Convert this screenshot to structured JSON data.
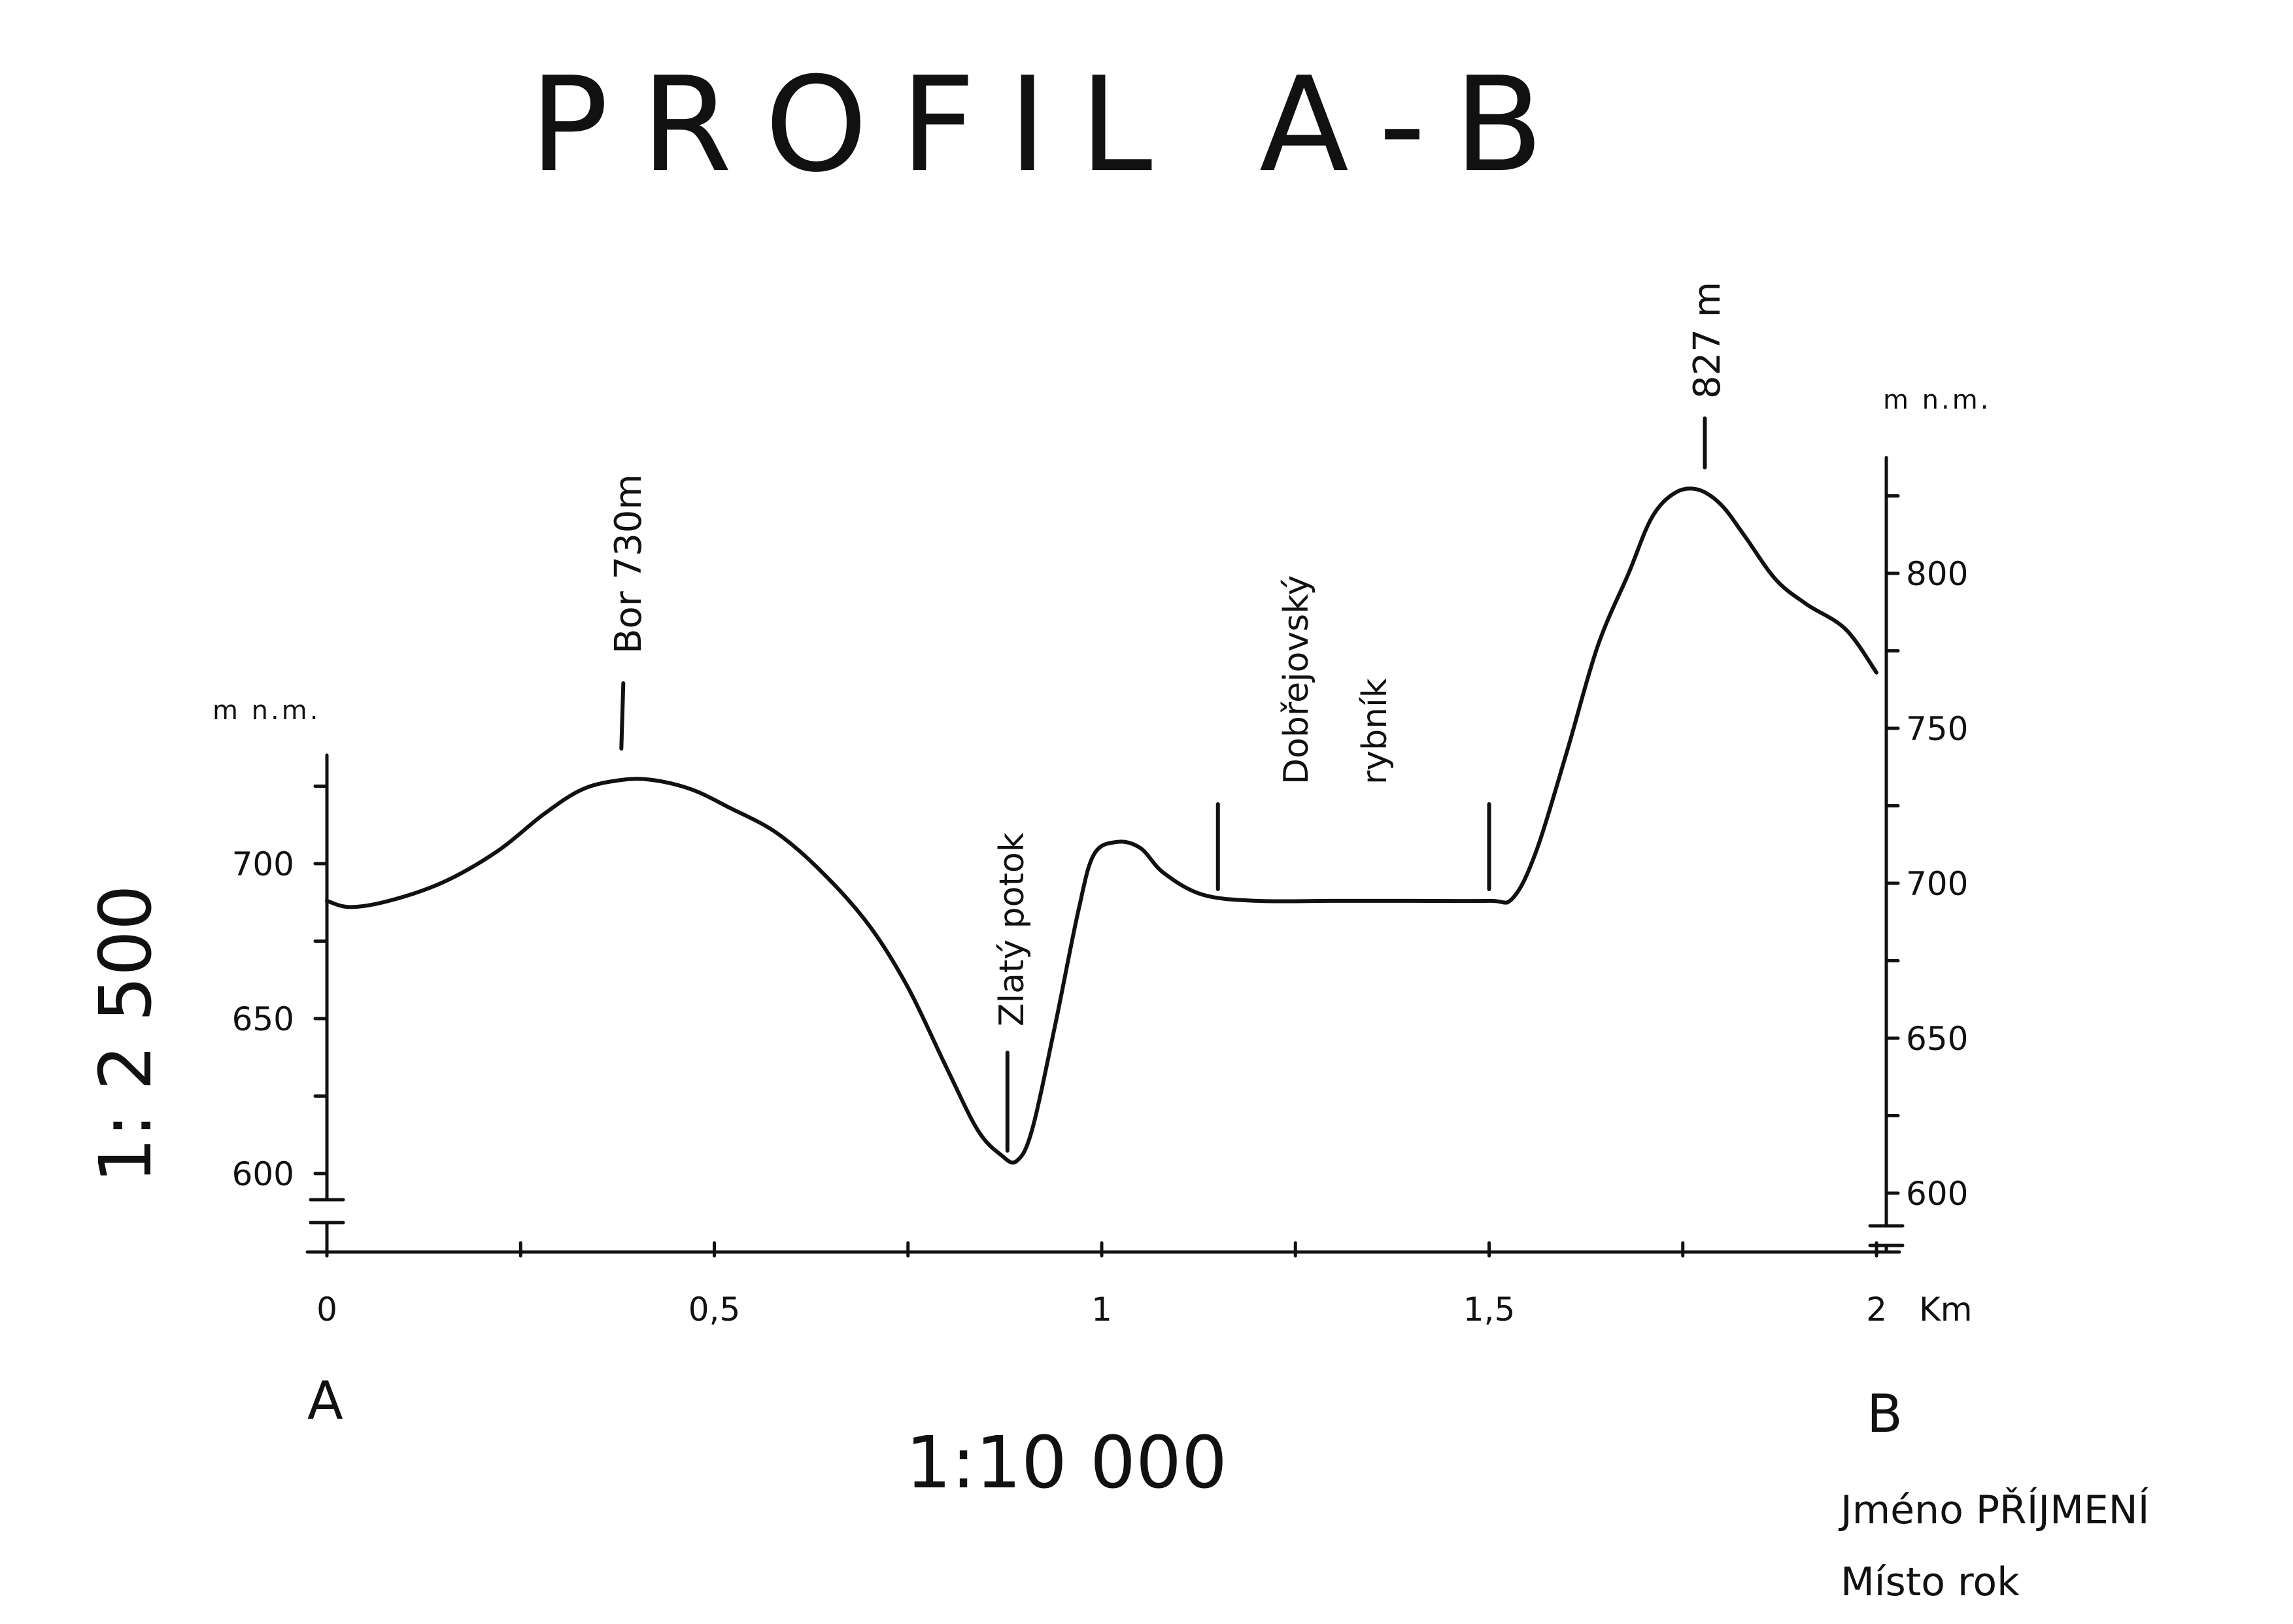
{
  "chart_data": {
    "type": "line",
    "title": "PROFIL A-B",
    "x_unit": "Km",
    "y_unit_left": "m n.m.",
    "y_unit_right": "m n.m.",
    "x_ticks": [
      0,
      0.25,
      0.5,
      0.75,
      1,
      1.25,
      1.5,
      1.75,
      2
    ],
    "x_tick_labels": [
      "0",
      "",
      "0,5",
      "",
      "1",
      "",
      "1,5",
      "",
      "2"
    ],
    "xlim": [
      0,
      2
    ],
    "ylim_left": [
      600,
      730
    ],
    "ylim_right": [
      600,
      830
    ],
    "y_ticks_left": [
      600,
      625,
      650,
      675,
      700,
      725
    ],
    "y_tick_labels_left": [
      "600",
      "",
      "650",
      "",
      "700",
      ""
    ],
    "y_ticks_right": [
      600,
      625,
      650,
      675,
      700,
      725,
      750,
      775,
      800,
      825
    ],
    "y_tick_labels_right": [
      "600",
      "",
      "650",
      "",
      "700",
      "",
      "750",
      "",
      "800",
      ""
    ],
    "axis_break": true,
    "grid": false,
    "start_label": "A",
    "end_label": "B",
    "horizontal_scale": "1:10 000",
    "vertical_scale": "1: 2 500",
    "series": [
      {
        "values": [
          {
            "x": 0.0,
            "y": 688
          },
          {
            "x": 0.03,
            "y": 686
          },
          {
            "x": 0.08,
            "y": 688
          },
          {
            "x": 0.15,
            "y": 694
          },
          {
            "x": 0.22,
            "y": 704
          },
          {
            "x": 0.28,
            "y": 716
          },
          {
            "x": 0.33,
            "y": 724
          },
          {
            "x": 0.38,
            "y": 727
          },
          {
            "x": 0.42,
            "y": 727
          },
          {
            "x": 0.47,
            "y": 724
          },
          {
            "x": 0.52,
            "y": 718
          },
          {
            "x": 0.58,
            "y": 710
          },
          {
            "x": 0.64,
            "y": 697
          },
          {
            "x": 0.7,
            "y": 680
          },
          {
            "x": 0.75,
            "y": 660
          },
          {
            "x": 0.8,
            "y": 634
          },
          {
            "x": 0.84,
            "y": 614
          },
          {
            "x": 0.87,
            "y": 606
          },
          {
            "x": 0.89,
            "y": 604
          },
          {
            "x": 0.91,
            "y": 614
          },
          {
            "x": 0.94,
            "y": 648
          },
          {
            "x": 0.97,
            "y": 685
          },
          {
            "x": 0.99,
            "y": 703
          },
          {
            "x": 1.02,
            "y": 707
          },
          {
            "x": 1.05,
            "y": 705
          },
          {
            "x": 1.08,
            "y": 697
          },
          {
            "x": 1.13,
            "y": 690
          },
          {
            "x": 1.2,
            "y": 688
          },
          {
            "x": 1.3,
            "y": 688
          },
          {
            "x": 1.4,
            "y": 688
          },
          {
            "x": 1.5,
            "y": 688
          },
          {
            "x": 1.53,
            "y": 690
          },
          {
            "x": 1.56,
            "y": 706
          },
          {
            "x": 1.6,
            "y": 740
          },
          {
            "x": 1.64,
            "y": 776
          },
          {
            "x": 1.68,
            "y": 800
          },
          {
            "x": 1.71,
            "y": 818
          },
          {
            "x": 1.74,
            "y": 826
          },
          {
            "x": 1.77,
            "y": 827
          },
          {
            "x": 1.8,
            "y": 822
          },
          {
            "x": 1.83,
            "y": 812
          },
          {
            "x": 1.87,
            "y": 798
          },
          {
            "x": 1.91,
            "y": 790
          },
          {
            "x": 1.96,
            "y": 782
          },
          {
            "x": 2.0,
            "y": 768
          }
        ]
      }
    ],
    "annotations": [
      {
        "text": "Bor 730m",
        "x": 0.38,
        "y": 730
      },
      {
        "text": "Zlatý potok",
        "x": 0.88,
        "y": 604
      },
      {
        "text": "Dobřejovský",
        "x": 1.32,
        "y": 688
      },
      {
        "text": "rybník",
        "x": 1.32,
        "y": 688
      },
      {
        "text": "827 m",
        "x": 1.77,
        "y": 827
      }
    ],
    "pond_markers_x": [
      1.15,
      1.5
    ]
  },
  "signature": {
    "line1": "Jméno PŘÍJMENÍ",
    "line2": "Místo rok"
  },
  "colors": {
    "ink": "#111111",
    "paper": "#ffffff"
  }
}
